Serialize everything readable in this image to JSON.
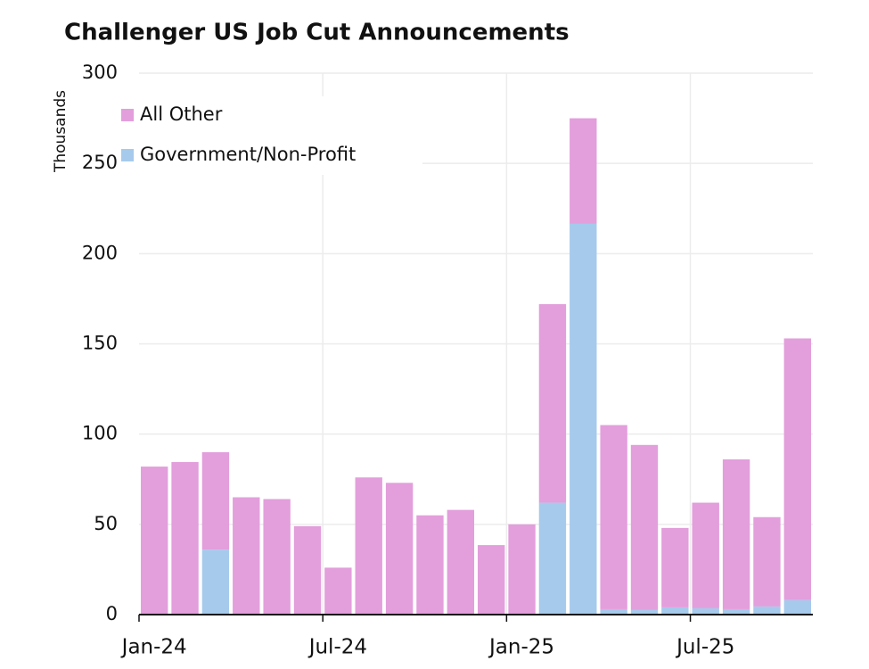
{
  "chart_data": {
    "type": "stacked_bar",
    "title": "Challenger US Job Cut Announcements",
    "y_label": "Thousands",
    "categories": [
      "Jan-24",
      null,
      null,
      null,
      null,
      null,
      "Jul-24",
      null,
      null,
      null,
      null,
      null,
      "Jan-25",
      null,
      null,
      null,
      null,
      null,
      "Jul-25",
      null,
      null,
      null
    ],
    "series": [
      {
        "name": "All Other",
        "color": "#e39edc",
        "values": [
          82,
          84.5,
          54,
          65,
          64,
          49,
          26,
          76,
          73,
          55,
          58,
          38.5,
          50,
          110,
          58.5,
          102,
          91.5,
          44,
          58.5,
          83,
          49.5,
          145
        ]
      },
      {
        "name": "Government/Non-Profit",
        "color": "#a6caec",
        "values": [
          0,
          0,
          36,
          0,
          0,
          0,
          0,
          0,
          0,
          0,
          0,
          0,
          0,
          62,
          216.5,
          3,
          2.5,
          4,
          3.5,
          3,
          4.5,
          8
        ]
      }
    ],
    "ylim": [
      0,
      300
    ],
    "yticks": [
      0,
      50,
      100,
      150,
      200,
      250,
      300
    ],
    "grid": true,
    "legend": "top-left"
  }
}
